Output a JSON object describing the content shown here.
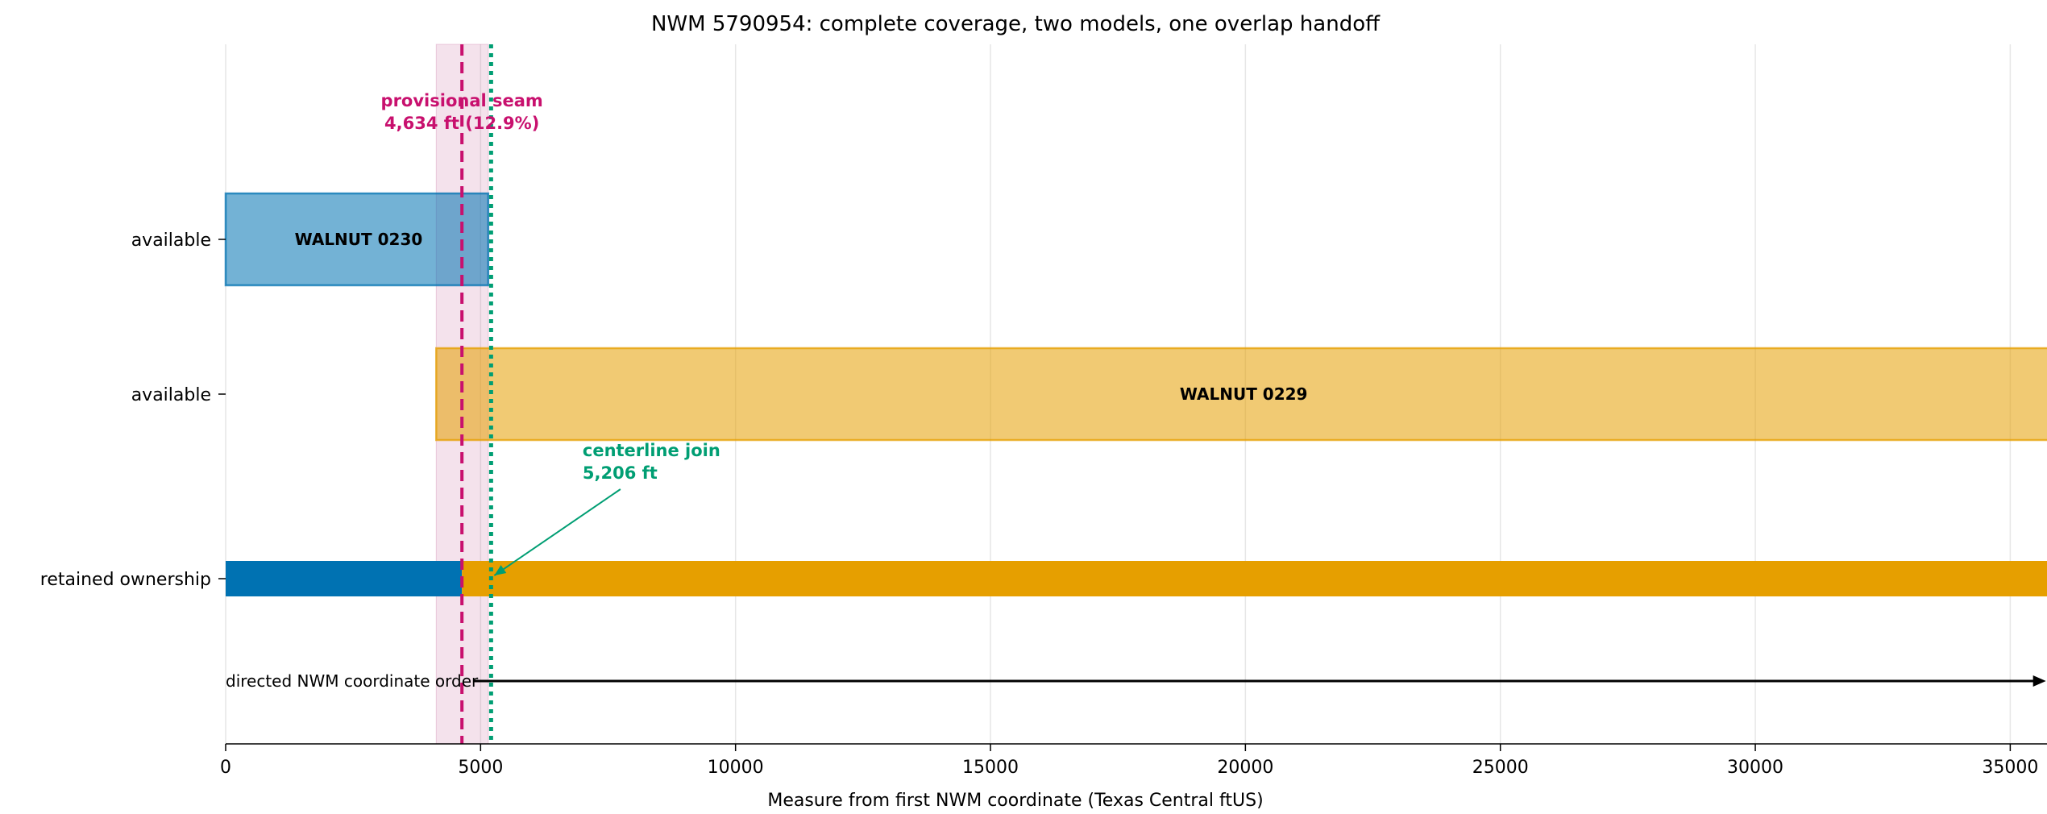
{
  "chart_data": {
    "type": "bar",
    "title": "NWM 5790954: complete coverage, two models, one overlap handoff",
    "xlabel": "Measure from first NWM coordinate (Texas Central ftUS)",
    "ylabel": "",
    "xlim": [
      0,
      35800
    ],
    "xticks": [
      0,
      5000,
      10000,
      15000,
      20000,
      25000,
      30000,
      35000
    ],
    "grid": "vertical",
    "rows": [
      {
        "label": "available",
        "start": 0,
        "end": 5150,
        "color": "#0072b2",
        "bar_label": "WALNUT 0230"
      },
      {
        "label": "available",
        "start": 4130,
        "end": 35800,
        "color": "#e69f00",
        "bar_label": "WALNUT 0229"
      },
      {
        "label": "retained ownership",
        "segments": [
          {
            "start": 0,
            "end": 4634,
            "color": "#0072b2"
          },
          {
            "start": 4634,
            "end": 35800,
            "color": "#e69f00"
          }
        ]
      }
    ],
    "overlap_band": {
      "start": 4130,
      "end": 5150,
      "color": "#cc79a7"
    },
    "seam": {
      "x": 4634,
      "line1": "provisional seam",
      "line2": "4,634 ft (12.9%)",
      "color": "#c8106e"
    },
    "join": {
      "x": 5206,
      "line1": "centerline join",
      "line2": "5,206 ft",
      "color": "#009e73"
    },
    "direction": {
      "label": "directed NWM coordinate order",
      "from": 5800,
      "to": 35700
    }
  }
}
